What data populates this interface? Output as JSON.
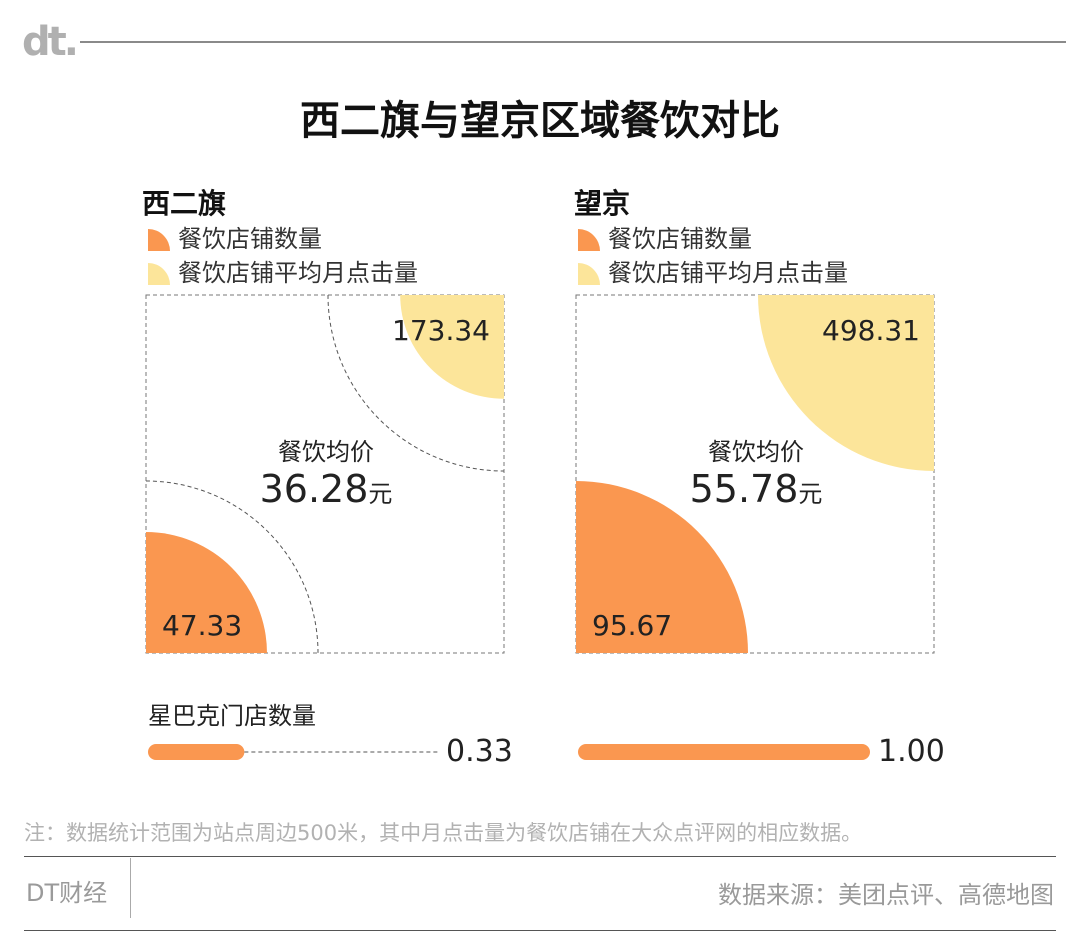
{
  "brand": {
    "logo_text": "dt."
  },
  "title": "西二旗与望京区域餐饮对比",
  "colors": {
    "orange": "#FA9750",
    "yellow": "#FCE59A",
    "dash": "#555555",
    "box": "#777777"
  },
  "legend": {
    "stores": "餐饮店铺数量",
    "clicks": "餐饮店铺平均月点击量"
  },
  "center_caption": "餐饮均价",
  "unit": "元",
  "starbucks_label": "星巴克门店数量",
  "chart_data": [
    {
      "type": "quarter-circle",
      "region": "西二旗",
      "stores": 47.33,
      "stores_label": "47.33",
      "monthly_clicks": 173.34,
      "clicks_label": "173.34",
      "avg_price": "36.28",
      "starbucks_count": 0.33,
      "starbucks_label": "0.33"
    },
    {
      "type": "quarter-circle",
      "region": "望京",
      "stores": 95.67,
      "stores_label": "95.67",
      "monthly_clicks": 498.31,
      "clicks_label": "498.31",
      "avg_price": "55.78",
      "starbucks_count": 1.0,
      "starbucks_label": "1.00"
    }
  ],
  "note": "注：数据统计范围为站点周边500米，其中月点击量为餐饮店铺在大众点评网的相应数据。",
  "footer": {
    "brand": "DT财经",
    "source": "数据来源：美团点评、高德地图"
  }
}
